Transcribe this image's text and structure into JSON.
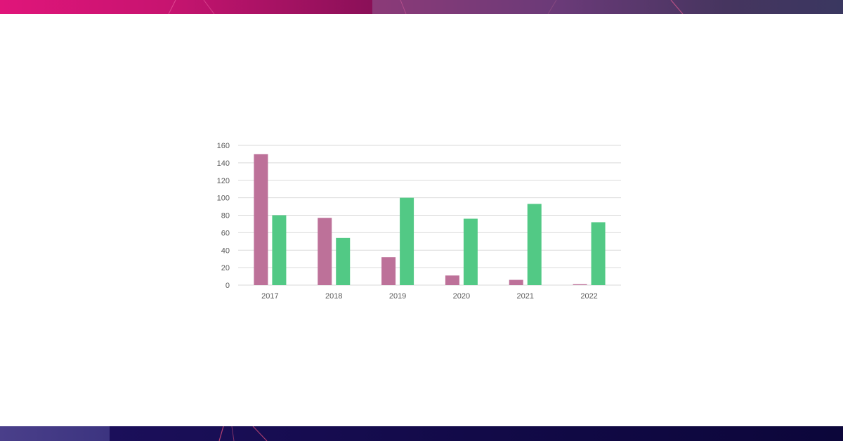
{
  "banners": {
    "top": {
      "left_color": "#e0157a",
      "right_color": "#46355f"
    },
    "bottom": {
      "left_color": "#4a3f8a",
      "right_color": "#120a48"
    }
  },
  "chart_data": {
    "type": "bar",
    "categories": [
      "2017",
      "2018",
      "2019",
      "2020",
      "2021",
      "2022"
    ],
    "series": [
      {
        "values": [
          150,
          77,
          32,
          11,
          6,
          1
        ],
        "color": "#bd7199"
      },
      {
        "values": [
          80,
          54,
          100,
          76,
          93,
          72
        ],
        "color": "#52c985"
      }
    ],
    "title": "",
    "xlabel": "",
    "ylabel": "",
    "ylim": [
      0,
      160
    ],
    "yticks": [
      0,
      20,
      40,
      60,
      80,
      100,
      120,
      140,
      160
    ],
    "grid": true,
    "legend": "none"
  }
}
